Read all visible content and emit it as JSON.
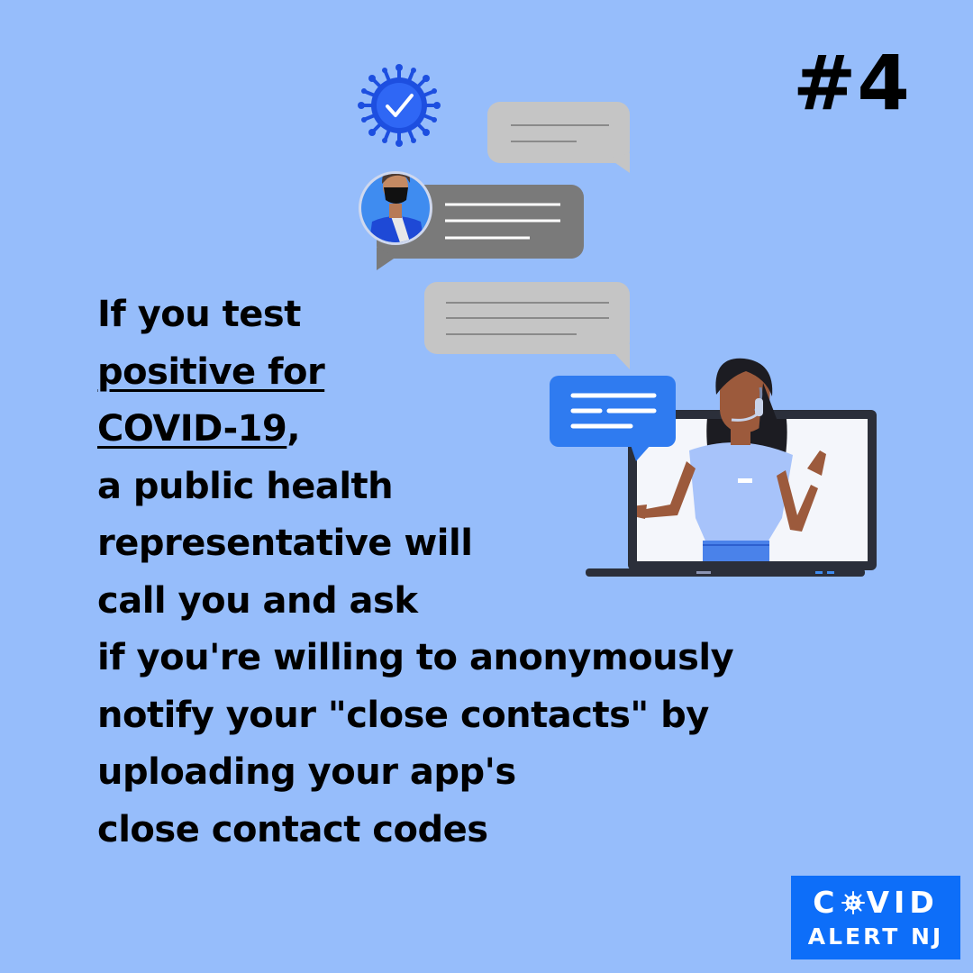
{
  "step": {
    "number": "#4"
  },
  "message": {
    "line1": "If you test",
    "line2": "positive for ",
    "line3_underlined": "COVID-19",
    "line3_rest": ",",
    "line4": "a public health",
    "line5": "representative will",
    "line6": "call you and ask",
    "line7": "if you're willing to anonymously",
    "line8": "notify your \"close contacts\" by",
    "line9": "uploading your app's",
    "line10": "close contact codes"
  },
  "logo": {
    "line1_before": "C",
    "line1_after": "VID",
    "line2": "ALERT NJ",
    "background": "#0d6ef9"
  },
  "colors": {
    "background": "#96bdfb",
    "bubble_light": "#c5c5c5",
    "bubble_dark": "#7a7a7a",
    "accent_blue": "#2f7bf0",
    "virus_blue": "#1d4fe0"
  },
  "icons": [
    "virus-check-icon",
    "masked-person-avatar",
    "chat-bubble-icon",
    "laptop-support-agent"
  ]
}
